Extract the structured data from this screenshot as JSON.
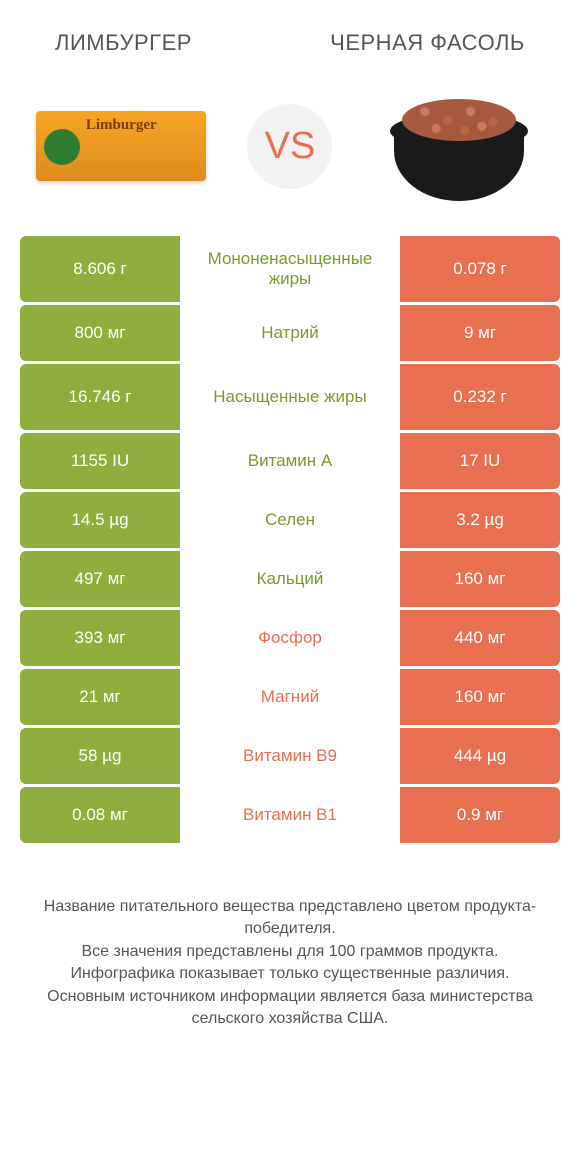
{
  "colors": {
    "green": "#8fae3d",
    "orange": "#e96f51",
    "green_text": "#7a9a2e",
    "orange_text": "#e96f51",
    "cell_text": "#ffffff",
    "vs_bg": "#f2f2f2",
    "vs_text": "#e96f51"
  },
  "header": {
    "left": "ЛИМБУРГЕР",
    "right": "ЧЕРНАЯ ФАСОЛЬ",
    "vs": "VS"
  },
  "rows": [
    {
      "left": "8.606 г",
      "label": "Мононенасыщенные жиры",
      "right": "0.078 г",
      "winner": "left",
      "tall": true
    },
    {
      "left": "800 мг",
      "label": "Натрий",
      "right": "9 мг",
      "winner": "left",
      "tall": false
    },
    {
      "left": "16.746 г",
      "label": "Насыщенные жиры",
      "right": "0.232 г",
      "winner": "left",
      "tall": true
    },
    {
      "left": "1155 IU",
      "label": "Витамин A",
      "right": "17 IU",
      "winner": "left",
      "tall": false
    },
    {
      "left": "14.5 µg",
      "label": "Селен",
      "right": "3.2 µg",
      "winner": "left",
      "tall": false
    },
    {
      "left": "497 мг",
      "label": "Кальций",
      "right": "160 мг",
      "winner": "left",
      "tall": false
    },
    {
      "left": "393 мг",
      "label": "Фосфор",
      "right": "440 мг",
      "winner": "right",
      "tall": false
    },
    {
      "left": "21 мг",
      "label": "Магний",
      "right": "160 мг",
      "winner": "right",
      "tall": false
    },
    {
      "left": "58 µg",
      "label": "Витамин B9",
      "right": "444 µg",
      "winner": "right",
      "tall": false
    },
    {
      "left": "0.08 мг",
      "label": "Витамин B1",
      "right": "0.9 мг",
      "winner": "right",
      "tall": false
    }
  ],
  "footer": {
    "line1": "Название питательного вещества представлено цветом продукта-победителя.",
    "line2": "Все значения представлены для 100 граммов продукта.",
    "line3": "Инфографика показывает только существенные различия.",
    "line4": "Основным источником информации является база министерства сельского хозяйства США."
  }
}
